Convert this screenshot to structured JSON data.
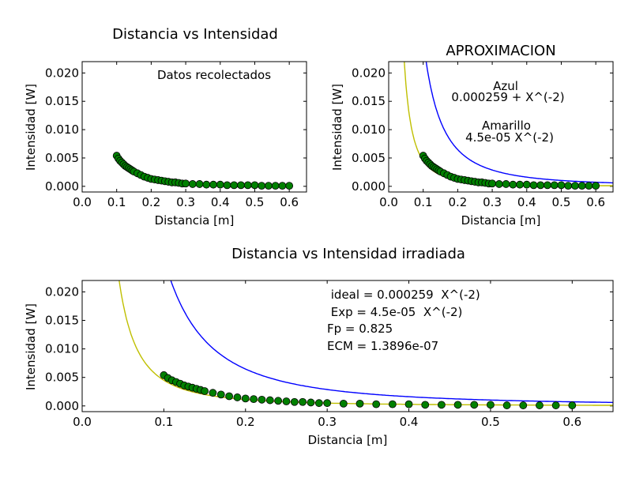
{
  "chart_data": [
    {
      "type": "scatter",
      "title": "Distancia vs Intensidad",
      "xlabel": "Distancia [m]",
      "ylabel": "Intensidad [W]",
      "xlim": [
        0.0,
        0.65
      ],
      "ylim": [
        -0.001,
        0.022
      ],
      "xticks": [
        "0.0",
        "0.1",
        "0.2",
        "0.3",
        "0.4",
        "0.5",
        "0.6"
      ],
      "yticks": [
        "0.000",
        "0.005",
        "0.010",
        "0.015",
        "0.020"
      ],
      "annotations": [
        "Datos recolectados"
      ],
      "series": [
        {
          "kind": "scatter",
          "color": "#008000",
          "x": [
            0.1,
            0.105,
            0.11,
            0.115,
            0.12,
            0.125,
            0.13,
            0.135,
            0.14,
            0.145,
            0.15,
            0.16,
            0.17,
            0.18,
            0.19,
            0.2,
            0.21,
            0.22,
            0.23,
            0.24,
            0.25,
            0.26,
            0.27,
            0.28,
            0.29,
            0.3,
            0.32,
            0.34,
            0.36,
            0.38,
            0.4,
            0.42,
            0.44,
            0.46,
            0.48,
            0.5,
            0.52,
            0.54,
            0.56,
            0.58,
            0.6
          ],
          "y": [
            0.0054,
            0.0049,
            0.0045,
            0.0042,
            0.0039,
            0.0036,
            0.0034,
            0.0032,
            0.003,
            0.0028,
            0.0026,
            0.0023,
            0.002,
            0.0017,
            0.0015,
            0.0013,
            0.0012,
            0.0011,
            0.001,
            0.0009,
            0.0008,
            0.0007,
            0.0007,
            0.0006,
            0.0005,
            0.0005,
            0.0004,
            0.0004,
            0.0003,
            0.0003,
            0.0003,
            0.0002,
            0.0002,
            0.0002,
            0.0002,
            0.0002,
            0.0001,
            0.0001,
            0.0001,
            0.0001,
            0.0001
          ]
        }
      ]
    },
    {
      "type": "line",
      "title": "APROXIMACION",
      "xlabel": "Distancia [m]",
      "ylabel": "Intensidad [W]",
      "xlim": [
        0.0,
        0.65
      ],
      "ylim": [
        -0.001,
        0.022
      ],
      "xticks": [
        "0.0",
        "0.1",
        "0.2",
        "0.3",
        "0.4",
        "0.5",
        "0.6"
      ],
      "yticks": [
        "0.000",
        "0.005",
        "0.010",
        "0.015",
        "0.020"
      ],
      "annotations": [
        "Azul",
        "0.000259 + X^(-2)",
        "Amarillo",
        "4.5e-05  X^(-2)"
      ],
      "series": [
        {
          "kind": "curve",
          "color": "#0000ff",
          "coef": 0.000259
        },
        {
          "kind": "curve",
          "color": "#bfbf00",
          "coef": 4.5e-05
        },
        {
          "kind": "scatter",
          "color": "#008000",
          "ref": 0
        }
      ]
    },
    {
      "type": "line",
      "title": "Distancia vs Intensidad irradiada",
      "xlabel": "Distancia [m]",
      "ylabel": "Intensidad [W]",
      "xlim": [
        0.0,
        0.65
      ],
      "ylim": [
        -0.001,
        0.022
      ],
      "xticks": [
        "0.0",
        "0.1",
        "0.2",
        "0.3",
        "0.4",
        "0.5",
        "0.6"
      ],
      "yticks": [
        "0.000",
        "0.005",
        "0.010",
        "0.015",
        "0.020"
      ],
      "annotations": [
        " ideal = 0.000259  X^(-2)",
        " Exp = 4.5e-05  X^(-2)",
        "Fp = 0.825",
        "ECM = 1.3896e-07"
      ],
      "series": [
        {
          "kind": "curve",
          "color": "#0000ff",
          "coef": 0.000259
        },
        {
          "kind": "curve",
          "color": "#bfbf00",
          "coef": 4.5e-05
        },
        {
          "kind": "scatter",
          "color": "#008000",
          "ref": 0
        }
      ]
    }
  ]
}
